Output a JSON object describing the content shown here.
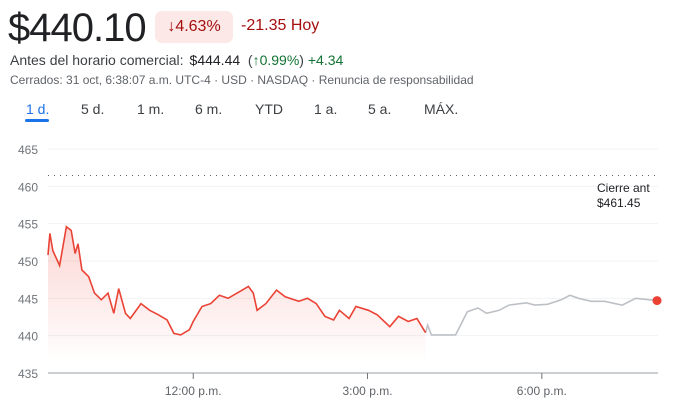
{
  "quote": {
    "price": "$440.10",
    "change_pct": "4.63%",
    "change_abs": "-21.35 Hoy",
    "down_arrow": "↓"
  },
  "premarket": {
    "label": "Antes del horario comercial:",
    "price": "$444.44",
    "open_paren": "(",
    "arrow": "↑",
    "pct": "0.99%",
    "close_paren": ")",
    "abs": "+4.34"
  },
  "meta": "Cerrados: 31 oct, 6:38:07 a.m. UTC-4 · USD · NASDAQ · Renuncia de responsabilidad",
  "tabs": [
    {
      "label": "1 d.",
      "active": true
    },
    {
      "label": "5 d."
    },
    {
      "label": "1 m."
    },
    {
      "label": "6 m."
    },
    {
      "label": "YTD"
    },
    {
      "label": "1 a."
    },
    {
      "label": "5 a."
    },
    {
      "label": "MÁX."
    }
  ],
  "colors": {
    "down": "#ea4335",
    "after_hours": "#bdc1c6",
    "negative_text": "#a50e0e",
    "positive_text": "#137333",
    "accent": "#1a73e8"
  },
  "chart_data": {
    "type": "line",
    "ylim": [
      435,
      465
    ],
    "yticks": [
      "465",
      "460",
      "455",
      "450",
      "445",
      "440",
      "435"
    ],
    "xticks": [
      {
        "label": "12:00 p.m.",
        "time": "12:00"
      },
      {
        "label": "3:00 p.m.",
        "time": "15:00"
      },
      {
        "label": "6:00 p.m.",
        "time": "18:00"
      }
    ],
    "xrange": [
      "9:30",
      "20:00"
    ],
    "previous_close": {
      "label": "Cierre ant",
      "value_label": "$461.45",
      "value": 461.45
    },
    "series": [
      {
        "session": "regular",
        "points": [
          [
            "9:30",
            450.8
          ],
          [
            "9:32",
            453.7
          ],
          [
            "9:35",
            451.4
          ],
          [
            "9:42",
            449.4
          ],
          [
            "9:49",
            454.6
          ],
          [
            "9:54",
            454.1
          ],
          [
            "9:58",
            451.0
          ],
          [
            "10:01",
            452.3
          ],
          [
            "10:05",
            448.8
          ],
          [
            "10:12",
            447.9
          ],
          [
            "10:18",
            445.7
          ],
          [
            "10:25",
            444.8
          ],
          [
            "10:32",
            445.7
          ],
          [
            "10:38",
            443.0
          ],
          [
            "10:43",
            446.3
          ],
          [
            "10:50",
            443.0
          ],
          [
            "10:55",
            442.3
          ],
          [
            "11:06",
            444.3
          ],
          [
            "11:15",
            443.4
          ],
          [
            "11:24",
            442.8
          ],
          [
            "11:33",
            442.1
          ],
          [
            "11:40",
            440.3
          ],
          [
            "11:47",
            440.1
          ],
          [
            "11:56",
            440.8
          ],
          [
            "12:00",
            441.9
          ],
          [
            "12:09",
            443.9
          ],
          [
            "12:18",
            444.3
          ],
          [
            "12:27",
            445.4
          ],
          [
            "12:36",
            445.0
          ],
          [
            "12:48",
            445.9
          ],
          [
            "12:57",
            446.6
          ],
          [
            "13:02",
            445.7
          ],
          [
            "13:06",
            443.4
          ],
          [
            "13:15",
            444.3
          ],
          [
            "13:26",
            446.1
          ],
          [
            "13:35",
            445.2
          ],
          [
            "13:49",
            444.6
          ],
          [
            "13:58",
            445.0
          ],
          [
            "14:07",
            444.3
          ],
          [
            "14:16",
            442.6
          ],
          [
            "14:25",
            442.1
          ],
          [
            "14:31",
            443.4
          ],
          [
            "14:41",
            442.3
          ],
          [
            "14:48",
            443.9
          ],
          [
            "15:01",
            443.4
          ],
          [
            "15:10",
            442.8
          ],
          [
            "15:23",
            441.2
          ],
          [
            "15:32",
            442.6
          ],
          [
            "15:42",
            441.9
          ],
          [
            "15:51",
            442.3
          ],
          [
            "16:00",
            440.4
          ]
        ]
      },
      {
        "session": "after-hours",
        "points": [
          [
            "16:00",
            440.4
          ],
          [
            "16:02",
            441.4
          ],
          [
            "16:06",
            440.1
          ],
          [
            "16:31",
            440.1
          ],
          [
            "16:43",
            443.2
          ],
          [
            "16:54",
            443.7
          ],
          [
            "17:03",
            443.0
          ],
          [
            "17:16",
            443.4
          ],
          [
            "17:26",
            444.1
          ],
          [
            "17:44",
            444.4
          ],
          [
            "17:53",
            444.1
          ],
          [
            "18:06",
            444.2
          ],
          [
            "18:20",
            444.8
          ],
          [
            "18:29",
            445.4
          ],
          [
            "18:38",
            445.0
          ],
          [
            "18:51",
            444.6
          ],
          [
            "19:05",
            444.6
          ],
          [
            "19:23",
            444.1
          ],
          [
            "19:37",
            445.0
          ],
          [
            "19:59",
            444.7
          ]
        ]
      }
    ]
  }
}
